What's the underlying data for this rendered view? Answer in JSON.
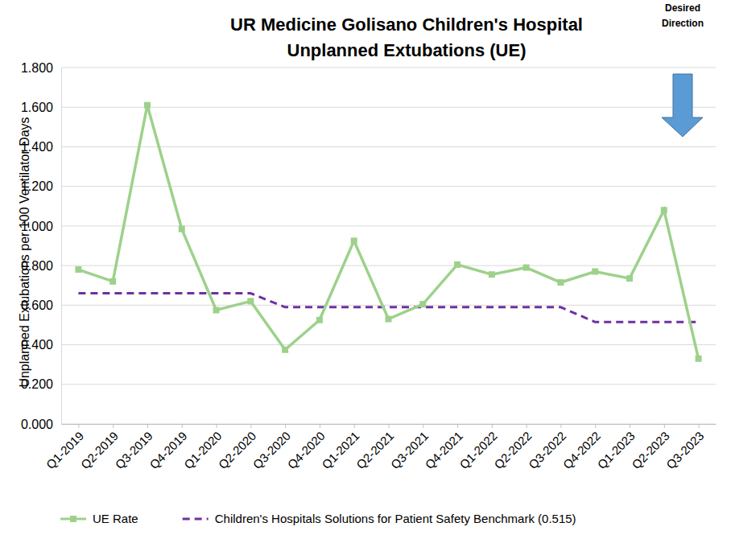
{
  "chart_data": {
    "type": "line",
    "title": "UR Medicine Golisano Children's Hospital",
    "subtitle": "Unplanned Extubations (UE)",
    "y_label": "Unplanned Extubations per 100 Ventilator Days",
    "annotation": "Desired Direction",
    "categories": [
      "Q1-2019",
      "Q2-2019",
      "Q3-2019",
      "Q4-2019",
      "Q1-2020",
      "Q2-2020",
      "Q3-2020",
      "Q4-2020",
      "Q1-2021",
      "Q2-2021",
      "Q3-2021",
      "Q4-2021",
      "Q1-2022",
      "Q2-2022",
      "Q3-2022",
      "Q4-2022",
      "Q1-2023",
      "Q2-2023",
      "Q3-2023"
    ],
    "series": [
      {
        "name": "UE Rate",
        "color": "#9dd18b",
        "marker": "square",
        "line_style": "solid",
        "values": [
          0.78,
          0.72,
          1.61,
          0.985,
          0.575,
          0.62,
          0.375,
          0.525,
          0.925,
          0.53,
          0.605,
          0.805,
          0.755,
          0.79,
          0.715,
          0.77,
          0.735,
          1.08,
          0.33
        ]
      },
      {
        "name": "Children's Hospitals Solutions for Patient Safety Benchmark (0.515)",
        "color": "#7030a0",
        "marker": "none",
        "line_style": "dashed",
        "values": [
          0.66,
          0.66,
          0.66,
          0.66,
          0.66,
          0.66,
          0.59,
          0.59,
          0.59,
          0.59,
          0.59,
          0.59,
          0.59,
          0.59,
          0.59,
          0.515,
          0.515,
          0.515,
          0.515
        ]
      }
    ],
    "ylim": [
      0,
      1.8
    ],
    "yticks": [
      {
        "value": 0,
        "label": "0.000"
      },
      {
        "value": 0.2,
        "label": "0.200"
      },
      {
        "value": 0.4,
        "label": "0.400"
      },
      {
        "value": 0.6,
        "label": "0.600"
      },
      {
        "value": 0.8,
        "label": "0.800"
      },
      {
        "value": 1.0,
        "label": "1.000"
      },
      {
        "value": 1.2,
        "label": "1.200"
      },
      {
        "value": 1.4,
        "label": "1.400"
      },
      {
        "value": 1.6,
        "label": "1.600"
      },
      {
        "value": 1.8,
        "label": "1.800"
      }
    ],
    "grid": true,
    "legend": "bottom"
  }
}
